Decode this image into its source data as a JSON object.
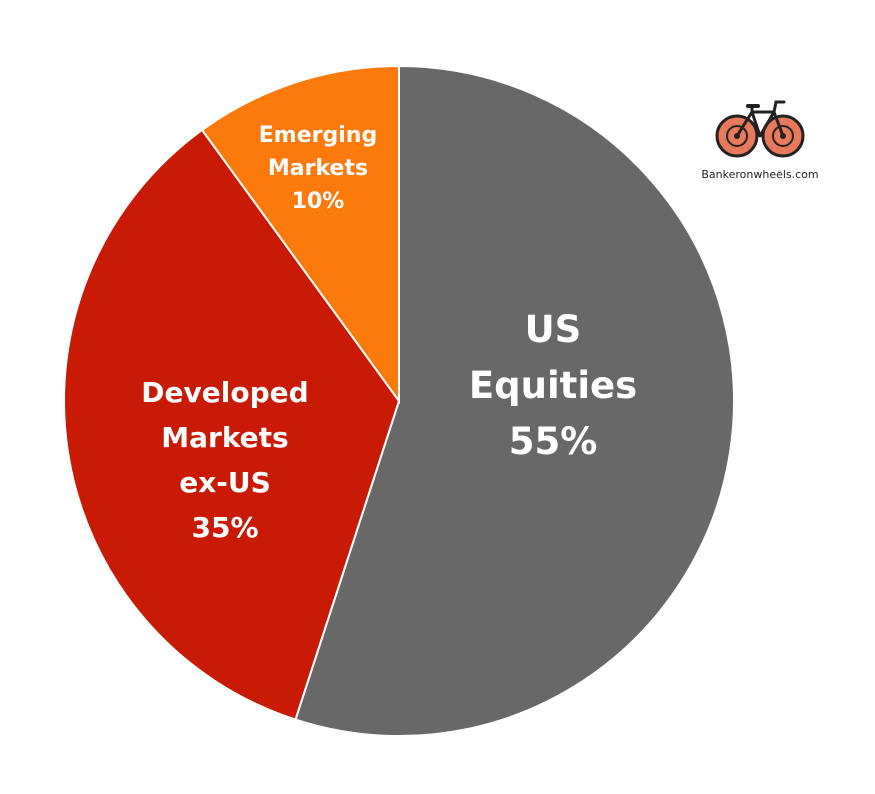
{
  "chart_data": {
    "type": "pie",
    "title": "",
    "slices": [
      {
        "name": "US Equities",
        "label_lines": [
          "US",
          "Equities",
          "55%"
        ],
        "value": 55,
        "color": "#686868"
      },
      {
        "name": "Developed Markets ex-US",
        "label_lines": [
          "Developed",
          "Markets",
          "ex-US",
          "35%"
        ],
        "value": 35,
        "color": "#c81a04"
      },
      {
        "name": "Emerging Markets",
        "label_lines": [
          "Emerging",
          "Markets",
          "10%"
        ],
        "value": 10,
        "color": "#fb7a0b"
      }
    ],
    "start": "12 o'clock",
    "direction": "clockwise",
    "legend": "none"
  },
  "logo": {
    "text": "Bankeronwheels.com",
    "icon": "bicycle-icon",
    "colors": {
      "wheel": "#e8795a",
      "frame": "#222222"
    }
  }
}
